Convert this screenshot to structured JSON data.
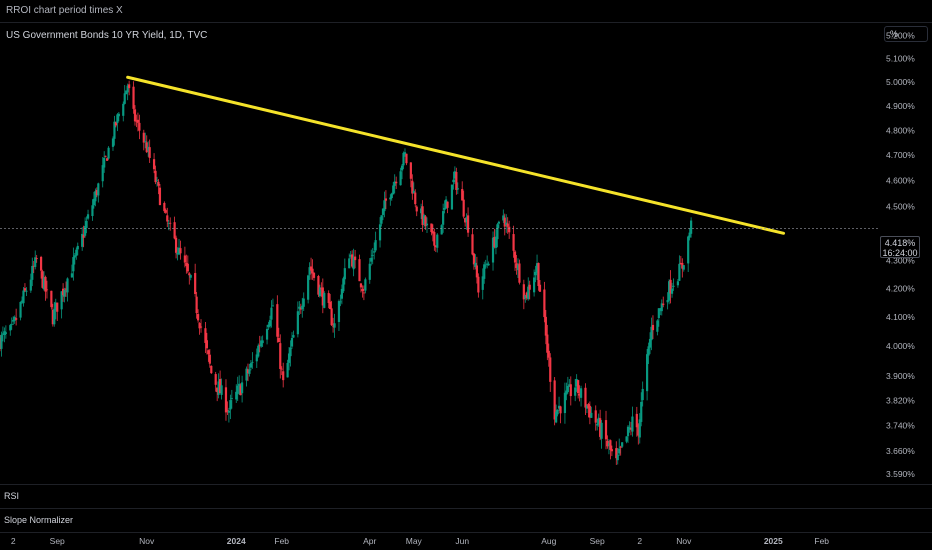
{
  "top_bar": {
    "title": "RROI chart period times X"
  },
  "legend": {
    "symbol": "US Government Bonds 10 YR Yield, 1D, TVC"
  },
  "scale_button": "%",
  "current_price": {
    "value": "4.418%",
    "countdown": "16:24:00"
  },
  "panes": {
    "rsi_label": "RSI",
    "slope_label": "Slope Normalizer"
  },
  "colors": {
    "up": "#089981",
    "down": "#f23645",
    "trendline": "#f5e32a",
    "background": "#000000"
  },
  "chart_data": {
    "type": "candlestick",
    "title": "US Government Bonds 10 YR Yield, 1D, TVC",
    "y_axis": {
      "ticks": [
        "5.200%",
        "5.100%",
        "5.000%",
        "4.900%",
        "4.800%",
        "4.700%",
        "4.600%",
        "4.500%",
        "4.300%",
        "4.200%",
        "4.100%",
        "4.000%",
        "3.900%",
        "3.820%",
        "3.740%",
        "3.660%",
        "3.590%"
      ],
      "range": [
        3.56,
        5.26
      ],
      "log_scale": true
    },
    "x_axis": {
      "ticks": [
        "2",
        "Sep",
        "Nov",
        "2024",
        "Feb",
        "Apr",
        "May",
        "Jun",
        "Aug",
        "Sep",
        "2",
        "Nov",
        "2025",
        "Feb"
      ],
      "range": [
        "2023-07-24",
        "2025-03-12"
      ]
    },
    "series_path": [
      {
        "date": "2023-07-24",
        "value": 4.02
      },
      {
        "date": "2023-08-01",
        "value": 4.05
      },
      {
        "date": "2023-08-18",
        "value": 4.3
      },
      {
        "date": "2023-08-29",
        "value": 4.1
      },
      {
        "date": "2023-09-15",
        "value": 4.33
      },
      {
        "date": "2023-09-29",
        "value": 4.58
      },
      {
        "date": "2023-10-19",
        "value": 4.99
      },
      {
        "date": "2023-10-23",
        "value": 4.86
      },
      {
        "date": "2023-11-01",
        "value": 4.73
      },
      {
        "date": "2023-11-14",
        "value": 4.45
      },
      {
        "date": "2023-12-01",
        "value": 4.22
      },
      {
        "date": "2023-12-15",
        "value": 3.91
      },
      {
        "date": "2023-12-27",
        "value": 3.79
      },
      {
        "date": "2024-01-12",
        "value": 3.94
      },
      {
        "date": "2024-01-26",
        "value": 4.14
      },
      {
        "date": "2024-02-02",
        "value": 3.87
      },
      {
        "date": "2024-02-20",
        "value": 4.28
      },
      {
        "date": "2024-03-08",
        "value": 4.07
      },
      {
        "date": "2024-03-18",
        "value": 4.33
      },
      {
        "date": "2024-03-28",
        "value": 4.2
      },
      {
        "date": "2024-04-12",
        "value": 4.52
      },
      {
        "date": "2024-04-25",
        "value": 4.7
      },
      {
        "date": "2024-05-03",
        "value": 4.5
      },
      {
        "date": "2024-05-15",
        "value": 4.36
      },
      {
        "date": "2024-05-29",
        "value": 4.61
      },
      {
        "date": "2024-06-07",
        "value": 4.43
      },
      {
        "date": "2024-06-14",
        "value": 4.2
      },
      {
        "date": "2024-07-01",
        "value": 4.47
      },
      {
        "date": "2024-07-16",
        "value": 4.17
      },
      {
        "date": "2024-07-24",
        "value": 4.28
      },
      {
        "date": "2024-08-05",
        "value": 3.78
      },
      {
        "date": "2024-08-19",
        "value": 3.87
      },
      {
        "date": "2024-09-06",
        "value": 3.72
      },
      {
        "date": "2024-09-16",
        "value": 3.62
      },
      {
        "date": "2024-09-27",
        "value": 3.75
      },
      {
        "date": "2024-10-01",
        "value": 3.73
      },
      {
        "date": "2024-10-10",
        "value": 4.06
      },
      {
        "date": "2024-10-22",
        "value": 4.2
      },
      {
        "date": "2024-10-31",
        "value": 4.28
      },
      {
        "date": "2024-11-06",
        "value": 4.43
      }
    ],
    "trendline": {
      "start": {
        "date": "2023-10-19",
        "value": 5.02
      },
      "end": {
        "date": "2025-01-08",
        "value": 4.4
      }
    },
    "current_value": 4.418,
    "grid": false,
    "lower_panes": [
      "RSI",
      "Slope Normalizer"
    ]
  }
}
